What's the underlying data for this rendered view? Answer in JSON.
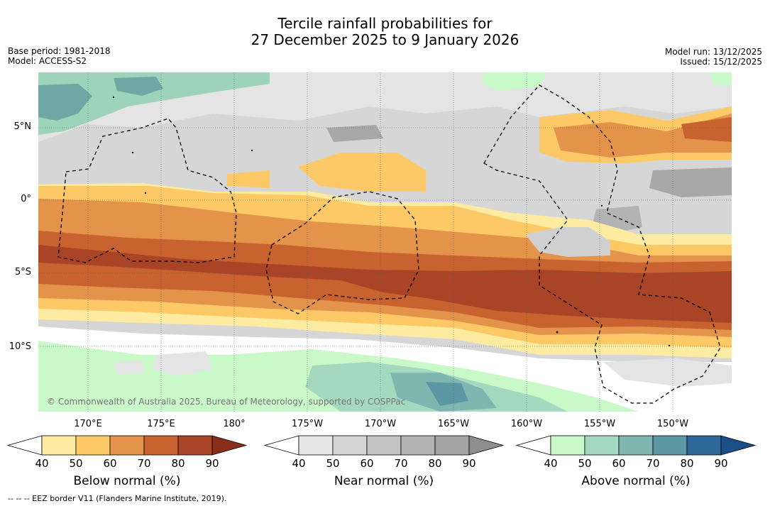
{
  "header": {
    "title_line1": "Tercile rainfall probabilities for",
    "title_line2": "27 December 2025 to 9 January 2026",
    "base_period": "Base period: 1981-2018",
    "model": "Model: ACCESS-S2",
    "model_run": "Model run: 13/12/2025",
    "issued": "Issued: 15/12/2025"
  },
  "map": {
    "lat_labels": [
      "5°N",
      "0°",
      "5°S",
      "10°S"
    ],
    "lon_labels": [
      "170°E",
      "175°E",
      "180°",
      "175°W",
      "170°W",
      "165°W",
      "160°W",
      "155°W",
      "150°W"
    ],
    "copyright": "© Commonwealth of Australia 2025, Bureau of Meteorology, supported by COSPPac"
  },
  "colorbars": [
    {
      "title": "Below normal (%)",
      "ticks": [
        "40",
        "50",
        "60",
        "70",
        "80",
        "90"
      ],
      "colors": [
        "#ffffff",
        "#feeba2",
        "#fdc966",
        "#e4934a",
        "#c8622f",
        "#a94426",
        "#8a2d1c"
      ]
    },
    {
      "title": "Near normal (%)",
      "ticks": [
        "40",
        "50",
        "60",
        "70",
        "80",
        "90"
      ],
      "colors": [
        "#ffffff",
        "#e6e6e6",
        "#d5d5d5",
        "#c4c4c4",
        "#b3b3b3",
        "#a4a4a4",
        "#8e8e8e"
      ]
    },
    {
      "title": "Above normal (%)",
      "ticks": [
        "40",
        "50",
        "60",
        "70",
        "80",
        "90"
      ],
      "colors": [
        "#ffffff",
        "#c9f8c9",
        "#a4d9c0",
        "#7fb7b0",
        "#5c98a4",
        "#2e6898",
        "#1b4f87"
      ]
    }
  ],
  "footer": "--  --  -- EEZ border V11 (Flanders Marine Institute, 2019)."
}
